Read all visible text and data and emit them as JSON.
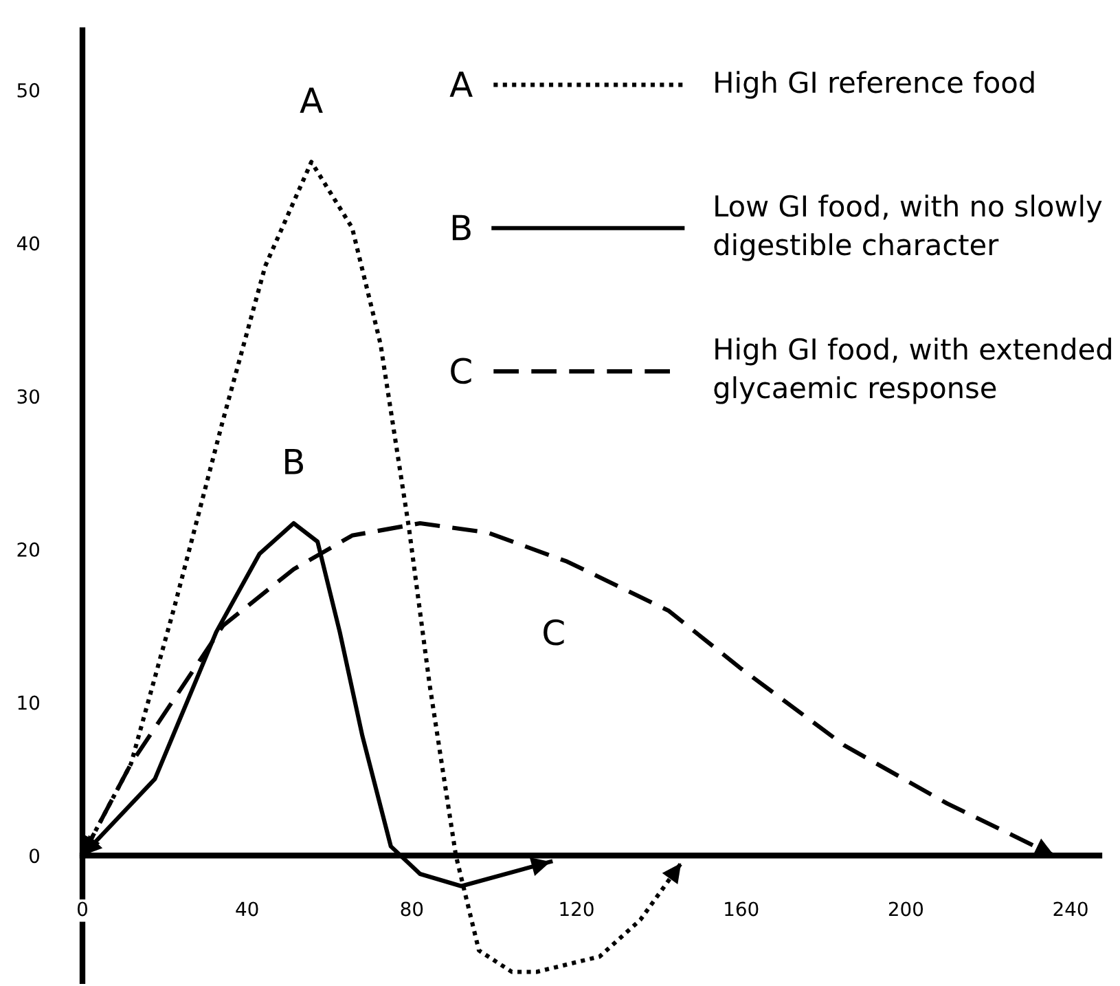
{
  "chart_data": {
    "type": "line",
    "xlim": [
      0,
      247
    ],
    "xticks": [
      0,
      40,
      80,
      120,
      160,
      200,
      240
    ],
    "ylim": [
      -8.2,
      53.9
    ],
    "yticks": [
      0,
      10,
      20,
      30,
      40,
      50
    ],
    "grid": false,
    "legend": "top",
    "series": [
      {
        "name": "A",
        "color": "#000000",
        "line_style": "dotted",
        "x": [
          0,
          11.8,
          22.4,
          34,
          44.4,
          55.6,
          65.5,
          72.4,
          79.3,
          84.3,
          90.7,
          96.3,
          104.3,
          110.3,
          125.6,
          135.5,
          145.4
        ],
        "values": [
          0,
          6,
          16.3,
          28.3,
          38.5,
          45.3,
          41,
          33.4,
          21.4,
          11.2,
          0,
          -6.2,
          -7.6,
          -7.6,
          -6.6,
          -4.2,
          -0.5
        ]
      },
      {
        "name": "B",
        "color": "#000000",
        "line_style": "solid",
        "x": [
          0,
          17.6,
          32.5,
          43,
          51.3,
          57.1,
          62.5,
          68,
          74.9,
          82,
          92,
          113.7
        ],
        "values": [
          0,
          5,
          14.6,
          19.7,
          21.7,
          20.5,
          14.6,
          7.8,
          0.6,
          -1.2,
          -2,
          -0.4
        ]
      },
      {
        "name": "C",
        "color": "#000000",
        "line_style": "dashed",
        "x": [
          0,
          11.8,
          34.1,
          51.3,
          65.5,
          82,
          98.3,
          117.7,
          142.3,
          160,
          185,
          210,
          236
        ],
        "values": [
          0,
          6,
          15,
          18.7,
          20.9,
          21.7,
          21.1,
          19.2,
          16,
          12.2,
          7.2,
          3.4,
          0
        ]
      }
    ],
    "annotations": [
      "High GI reference food",
      "Low GI food, with no slowly\ndigestible character",
      "High GI food, with extended\nglycaemic response"
    ]
  }
}
